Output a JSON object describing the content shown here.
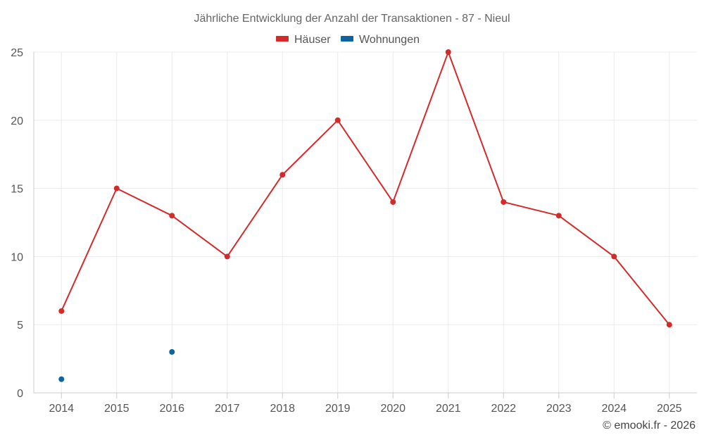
{
  "chart_data": {
    "type": "line",
    "title": "Jährliche Entwicklung der Anzahl der Transaktionen - 87 - Nieul",
    "categories": [
      "2014",
      "2015",
      "2016",
      "2017",
      "2018",
      "2019",
      "2020",
      "2021",
      "2022",
      "2023",
      "2024",
      "2025"
    ],
    "ylim": [
      0,
      25
    ],
    "yticks": [
      "0",
      "5",
      "10",
      "15",
      "20",
      "25"
    ],
    "grid": true,
    "legend_position": "top-center",
    "series": [
      {
        "name": "Häuser",
        "color": "#d42a2a",
        "values": [
          6,
          15,
          13,
          10,
          16,
          20,
          14,
          25,
          14,
          13,
          10,
          5
        ]
      },
      {
        "name": "Wohnungen",
        "color": "#0d64a0",
        "values": [
          1,
          null,
          3,
          null,
          null,
          null,
          null,
          null,
          null,
          null,
          null,
          null
        ]
      }
    ]
  },
  "credit": "© emooki.fr - 2026"
}
